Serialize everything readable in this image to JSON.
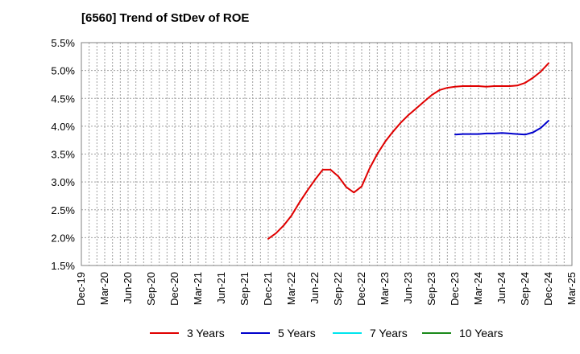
{
  "chart_data": {
    "type": "line",
    "title": "[6560]  Trend of StDev of ROE",
    "xlabel": "",
    "ylabel": "",
    "x_ticks": [
      "Dec-19",
      "Mar-20",
      "Jun-20",
      "Sep-20",
      "Dec-20",
      "Mar-21",
      "Jun-21",
      "Sep-21",
      "Dec-21",
      "Mar-22",
      "Jun-22",
      "Sep-22",
      "Dec-22",
      "Mar-23",
      "Jun-23",
      "Sep-23",
      "Dec-23",
      "Mar-24",
      "Jun-24",
      "Sep-24",
      "Dec-24",
      "Mar-25"
    ],
    "y_ticks": [
      "1.5%",
      "2.0%",
      "2.5%",
      "3.0%",
      "3.5%",
      "4.0%",
      "4.5%",
      "5.0%",
      "5.5%"
    ],
    "ylim": [
      1.5,
      5.5
    ],
    "y_unit": "%",
    "grid": true,
    "legend_position": "bottom",
    "series": [
      {
        "name": "3 Years",
        "color": "#e00000",
        "points": [
          [
            "Dec-21",
            1.98
          ],
          [
            "Jan-22",
            2.08
          ],
          [
            "Feb-22",
            2.22
          ],
          [
            "Mar-22",
            2.4
          ],
          [
            "Apr-22",
            2.63
          ],
          [
            "May-22",
            2.84
          ],
          [
            "Jun-22",
            3.04
          ],
          [
            "Jul-22",
            3.22
          ],
          [
            "Aug-22",
            3.22
          ],
          [
            "Sep-22",
            3.1
          ],
          [
            "Oct-22",
            2.91
          ],
          [
            "Nov-22",
            2.81
          ],
          [
            "Dec-22",
            2.92
          ],
          [
            "Jan-23",
            3.24
          ],
          [
            "Feb-23",
            3.5
          ],
          [
            "Mar-23",
            3.72
          ],
          [
            "Apr-23",
            3.9
          ],
          [
            "May-23",
            4.06
          ],
          [
            "Jun-23",
            4.2
          ],
          [
            "Jul-23",
            4.32
          ],
          [
            "Aug-23",
            4.44
          ],
          [
            "Sep-23",
            4.56
          ],
          [
            "Oct-23",
            4.65
          ],
          [
            "Nov-23",
            4.69
          ],
          [
            "Dec-23",
            4.71
          ],
          [
            "Jan-24",
            4.72
          ],
          [
            "Feb-24",
            4.72
          ],
          [
            "Mar-24",
            4.72
          ],
          [
            "Apr-24",
            4.71
          ],
          [
            "May-24",
            4.72
          ],
          [
            "Jun-24",
            4.72
          ],
          [
            "Jul-24",
            4.72
          ],
          [
            "Aug-24",
            4.73
          ],
          [
            "Sep-24",
            4.78
          ],
          [
            "Oct-24",
            4.87
          ],
          [
            "Nov-24",
            4.98
          ],
          [
            "Dec-24",
            5.13
          ]
        ]
      },
      {
        "name": "5 Years",
        "color": "#0000cc",
        "points": [
          [
            "Dec-23",
            3.85
          ],
          [
            "Jan-24",
            3.86
          ],
          [
            "Feb-24",
            3.86
          ],
          [
            "Mar-24",
            3.86
          ],
          [
            "Apr-24",
            3.87
          ],
          [
            "May-24",
            3.87
          ],
          [
            "Jun-24",
            3.88
          ],
          [
            "Jul-24",
            3.87
          ],
          [
            "Aug-24",
            3.86
          ],
          [
            "Sep-24",
            3.85
          ],
          [
            "Oct-24",
            3.89
          ],
          [
            "Nov-24",
            3.97
          ],
          [
            "Dec-24",
            4.1
          ]
        ]
      },
      {
        "name": "7 Years",
        "color": "#00e5ee",
        "points": []
      },
      {
        "name": "10 Years",
        "color": "#1a8a1a",
        "points": []
      }
    ]
  }
}
